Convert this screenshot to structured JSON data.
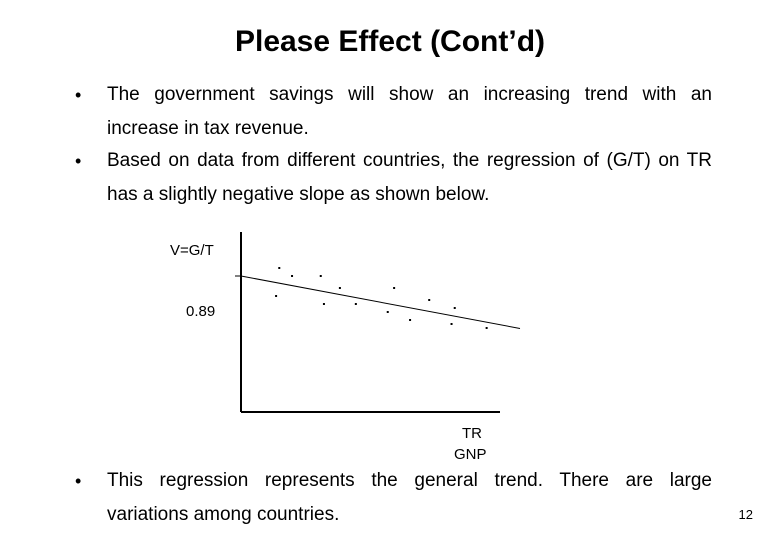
{
  "slide": {
    "title": "Please Effect (Cont’d)",
    "bullets": [
      {
        "line1": "The government savings will show an increasing trend with an",
        "line2": "increase in tax revenue."
      },
      {
        "line1": "Based on data from different countries, the regression of (G/T) on TR",
        "line2": "has a slightly negative slope as shown below."
      },
      {
        "line1": "This regression represents the general trend. There are large",
        "line2": "variations among countries."
      }
    ],
    "bullet_symbol": "•",
    "page_number": "12"
  },
  "chart_data": {
    "type": "scatter",
    "ylabel": "V=G/T",
    "xlabel_numerator": "TR",
    "xlabel_denominator": "GNP",
    "y_reference_label": "0.89",
    "y_reference_value": 0.89,
    "ylim": [
      0.55,
      1.0
    ],
    "xlim": [
      0,
      1
    ],
    "points": [
      {
        "x": 0.12,
        "y": 0.91
      },
      {
        "x": 0.16,
        "y": 0.89
      },
      {
        "x": 0.25,
        "y": 0.89
      },
      {
        "x": 0.31,
        "y": 0.86
      },
      {
        "x": 0.48,
        "y": 0.86
      },
      {
        "x": 0.11,
        "y": 0.84
      },
      {
        "x": 0.26,
        "y": 0.82
      },
      {
        "x": 0.36,
        "y": 0.82
      },
      {
        "x": 0.59,
        "y": 0.83
      },
      {
        "x": 0.67,
        "y": 0.81
      },
      {
        "x": 0.46,
        "y": 0.8
      },
      {
        "x": 0.53,
        "y": 0.78
      },
      {
        "x": 0.66,
        "y": 0.77
      },
      {
        "x": 0.77,
        "y": 0.76
      }
    ],
    "trend_line": {
      "x": [
        0,
        1
      ],
      "y": [
        0.89,
        0.74
      ]
    },
    "grid": false,
    "legend": "none"
  }
}
